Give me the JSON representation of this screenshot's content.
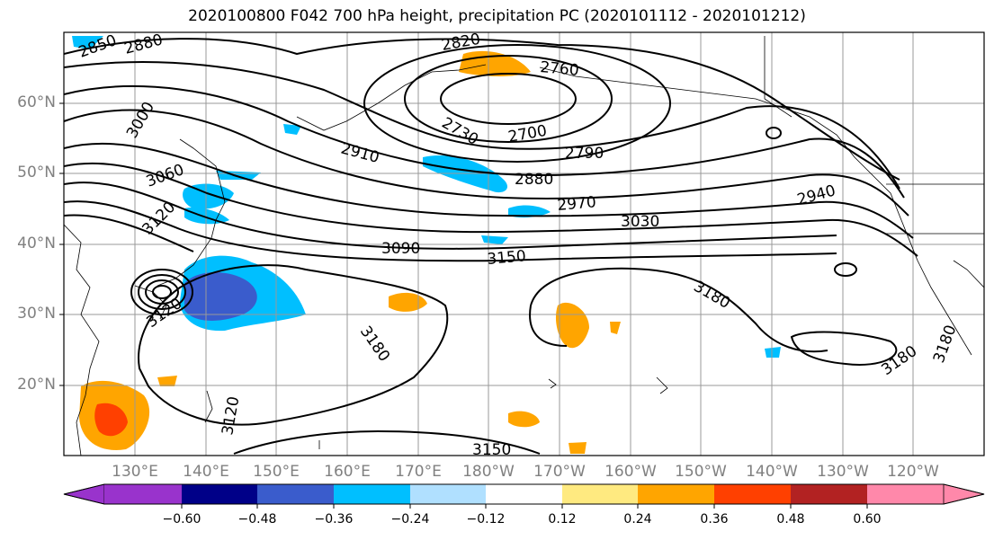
{
  "title": "2020100800 F042 700 hPa height, precipitation PC (2020101112 - 2020101212)",
  "lat_labels": [
    "60°N",
    "50°N",
    "40°N",
    "30°N",
    "20°N"
  ],
  "lon_labels": [
    "130°E",
    "140°E",
    "150°E",
    "160°E",
    "170°E",
    "180°W",
    "170°W",
    "160°W",
    "150°W",
    "140°W",
    "130°W",
    "120°W"
  ],
  "contour_labels": [
    "2850",
    "2880",
    "2820",
    "2760",
    "3000",
    "2730",
    "2700",
    "2910",
    "2790",
    "3060",
    "2880",
    "3120",
    "2970",
    "3030",
    "2940",
    "3090",
    "3150",
    "3180",
    "3120",
    "3180",
    "3180",
    "3180",
    "3120",
    "3150"
  ],
  "colorbar": {
    "ticks": [
      "−0.60",
      "−0.48",
      "−0.36",
      "−0.24",
      "−0.12",
      "0.12",
      "0.24",
      "0.36",
      "0.48",
      "0.60"
    ],
    "colors": [
      "#9933cc",
      "#000088",
      "#3a5ccc",
      "#00bfff",
      "#b0e0ff",
      "#ffffff",
      "#ffea80",
      "#ffa500",
      "#ff4000",
      "#b22222",
      "#ff88aa"
    ]
  }
}
